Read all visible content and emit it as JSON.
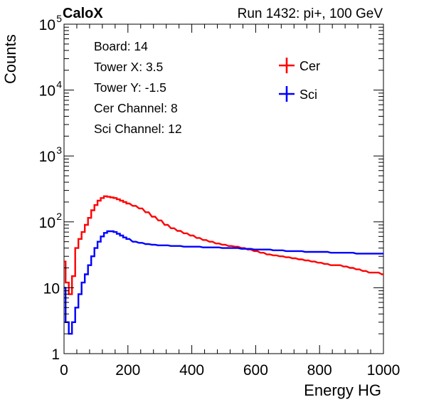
{
  "header": {
    "left": "CaloX",
    "right": "Run 1432: pi+, 100 GeV"
  },
  "info_box": [
    "Board: 14",
    "Tower X: 3.5",
    "Tower Y: -1.5",
    "Cer Channel: 8",
    "Sci Channel: 12"
  ],
  "chart_data": {
    "type": "line",
    "xlabel": "Energy HG",
    "ylabel": "Counts",
    "xlim": [
      0,
      1000
    ],
    "ylim": [
      1,
      100000
    ],
    "yscale": "log",
    "x_ticks": [
      "0",
      "200",
      "400",
      "600",
      "800",
      "1000"
    ],
    "y_ticks": [
      {
        "value": 1,
        "base": "1",
        "exp": ""
      },
      {
        "value": 10,
        "base": "10",
        "exp": ""
      },
      {
        "value": 100,
        "base": "10",
        "exp": "2"
      },
      {
        "value": 1000,
        "base": "10",
        "exp": "3"
      },
      {
        "value": 10000,
        "base": "10",
        "exp": "4"
      },
      {
        "value": 100000,
        "base": "10",
        "exp": "5"
      }
    ],
    "grid": false,
    "legend_position": "top-right",
    "x": [
      0,
      10,
      20,
      30,
      40,
      50,
      60,
      70,
      80,
      90,
      100,
      110,
      120,
      130,
      140,
      150,
      160,
      170,
      180,
      190,
      200,
      220,
      240,
      260,
      280,
      300,
      320,
      340,
      360,
      380,
      400,
      420,
      440,
      460,
      480,
      500,
      520,
      540,
      560,
      580,
      600,
      620,
      640,
      660,
      680,
      700,
      720,
      740,
      760,
      780,
      800,
      820,
      840,
      860,
      880,
      900,
      920,
      940,
      960,
      980,
      1000
    ],
    "series": [
      {
        "name": "Cer",
        "color": "#ff0000",
        "values": [
          25,
          12,
          8,
          15,
          40,
          55,
          70,
          90,
          115,
          150,
          180,
          210,
          230,
          245,
          240,
          235,
          230,
          220,
          210,
          200,
          190,
          175,
          160,
          140,
          120,
          105,
          90,
          80,
          73,
          67,
          62,
          57,
          53,
          50,
          47,
          45,
          43,
          42,
          40,
          38,
          36,
          34,
          32,
          31,
          30,
          29,
          28,
          27,
          26,
          25,
          24,
          23,
          22,
          22,
          21,
          20,
          19,
          18,
          17,
          17,
          16
        ]
      },
      {
        "name": "Sci",
        "color": "#0000ff",
        "values": [
          10,
          3,
          2,
          3,
          5,
          8,
          12,
          16,
          22,
          30,
          40,
          50,
          60,
          68,
          72,
          72,
          70,
          66,
          62,
          58,
          55,
          50,
          48,
          46,
          45,
          44,
          44,
          43,
          43,
          42,
          42,
          42,
          41,
          41,
          41,
          40,
          40,
          40,
          39,
          39,
          38,
          38,
          38,
          37,
          37,
          36,
          36,
          36,
          35,
          35,
          35,
          35,
          34,
          34,
          34,
          34,
          33,
          33,
          33,
          33,
          33
        ]
      }
    ]
  }
}
